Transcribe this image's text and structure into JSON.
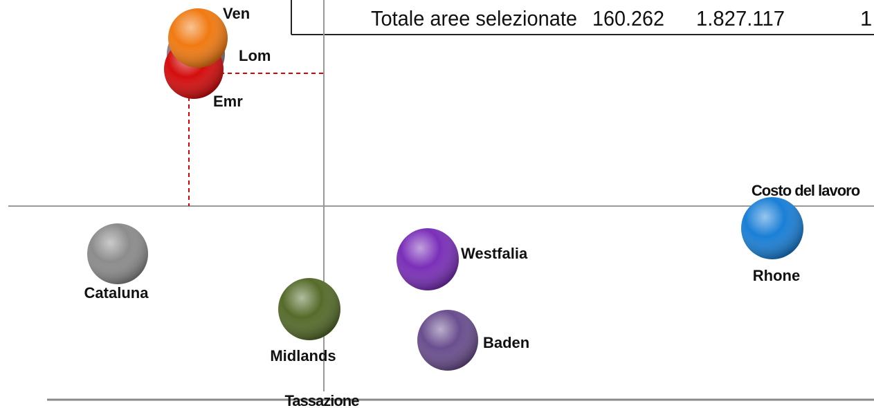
{
  "header_row": {
    "label": "Totale aree selezionate",
    "cells": [
      "160.262",
      "1.827.117",
      "1"
    ]
  },
  "axis_labels": {
    "x": "Tassazione",
    "y": "Costo del lavoro"
  },
  "nodes": [
    {
      "label": "Lom"
    },
    {
      "label": "Emr"
    },
    {
      "label": "Ven"
    },
    {
      "label": "Cataluna"
    },
    {
      "label": "Midlands"
    },
    {
      "label": "Westfalia"
    },
    {
      "label": "Baden"
    },
    {
      "label": "Rhone"
    }
  ]
}
